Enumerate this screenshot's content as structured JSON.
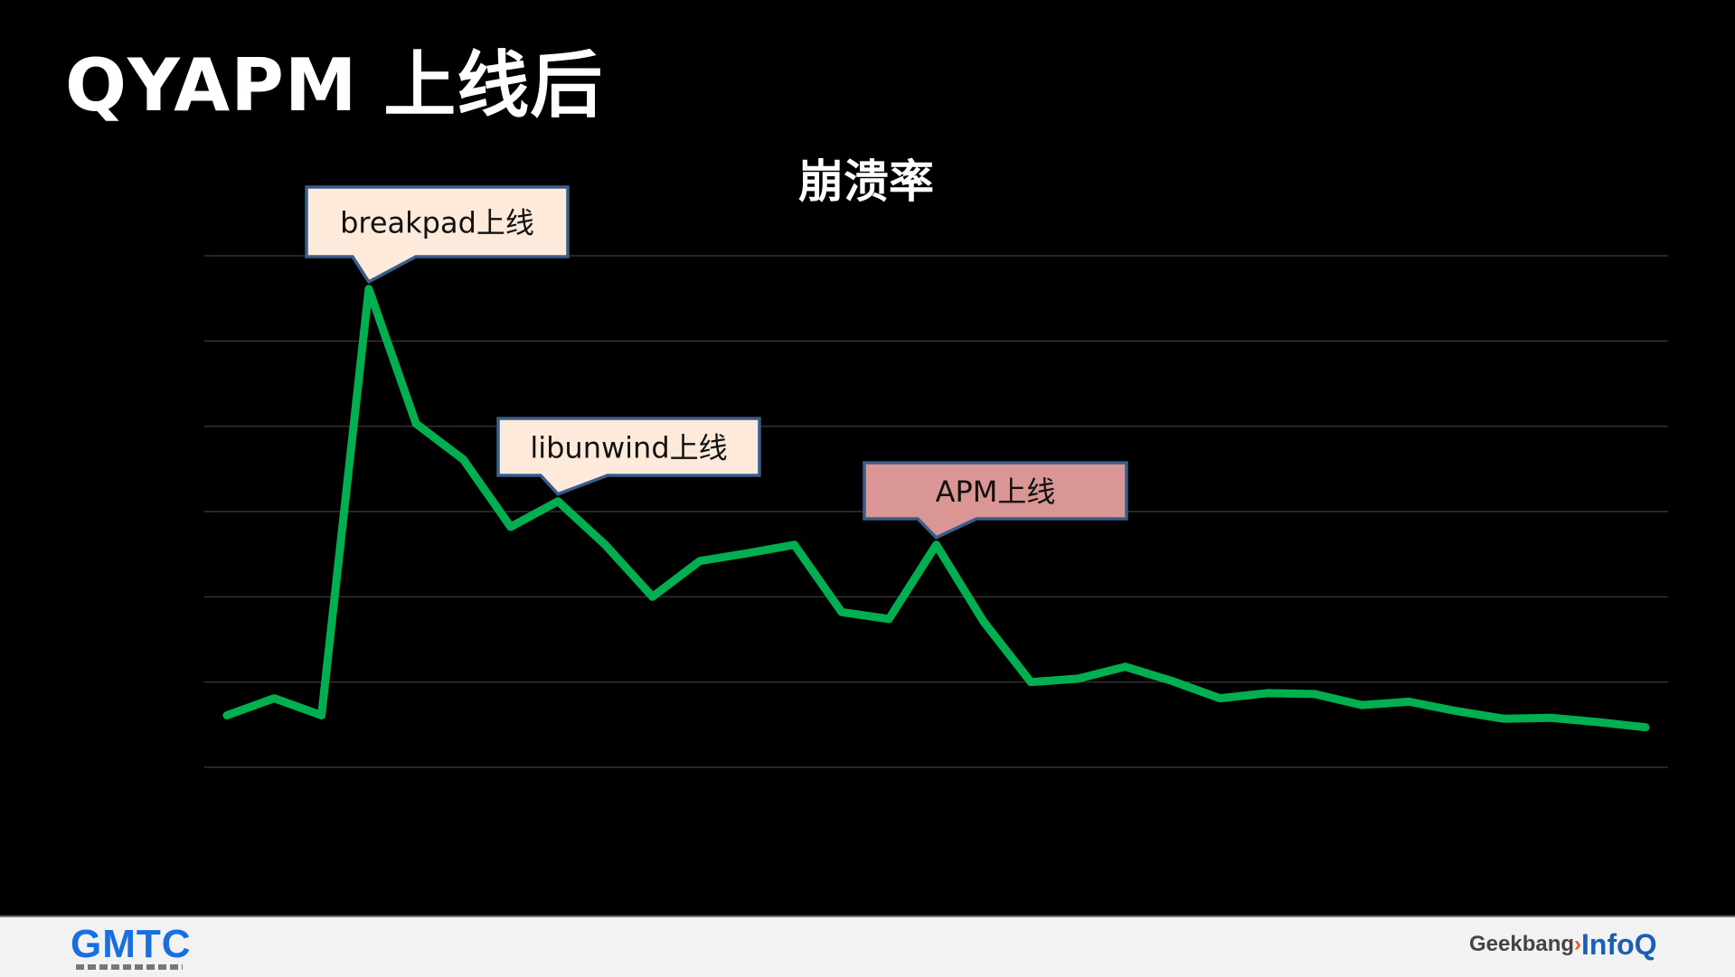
{
  "slide": {
    "title": "QYAPM 上线后"
  },
  "footer": {
    "left_logo": "GMTC",
    "right_logo_1": "Geekbang",
    "right_logo_2": "InfoQ"
  },
  "colors": {
    "line": "#00b050",
    "grid": "#333333",
    "callout_fill": "#fdeada",
    "callout_highlight": "#d99694",
    "callout_border": "#385d8a"
  },
  "chart_data": {
    "type": "line",
    "title": "崩溃率",
    "grid": true,
    "y_axis_labels_shown": false,
    "ylim": [
      0,
      6
    ],
    "x": [
      1,
      2,
      3,
      4,
      5,
      6,
      7,
      8,
      9,
      10,
      11,
      12,
      13,
      14,
      15,
      16,
      17,
      18,
      19,
      20,
      21,
      22,
      23,
      24,
      25,
      26,
      27,
      28,
      29,
      30,
      31
    ],
    "values": [
      0.61,
      0.81,
      0.61,
      5.61,
      4.03,
      3.61,
      2.82,
      3.12,
      2.61,
      2.0,
      2.42,
      2.51,
      2.61,
      1.82,
      1.74,
      2.61,
      1.71,
      1.0,
      1.04,
      1.18,
      1.01,
      0.81,
      0.87,
      0.86,
      0.73,
      0.77,
      0.66,
      0.57,
      0.58,
      0.53,
      0.47
    ],
    "annotations": [
      {
        "text": "breakpad上线",
        "point_index": 3
      },
      {
        "text": "libunwind上线",
        "point_index": 7
      },
      {
        "text": "APM上线",
        "point_index": 15
      }
    ]
  }
}
